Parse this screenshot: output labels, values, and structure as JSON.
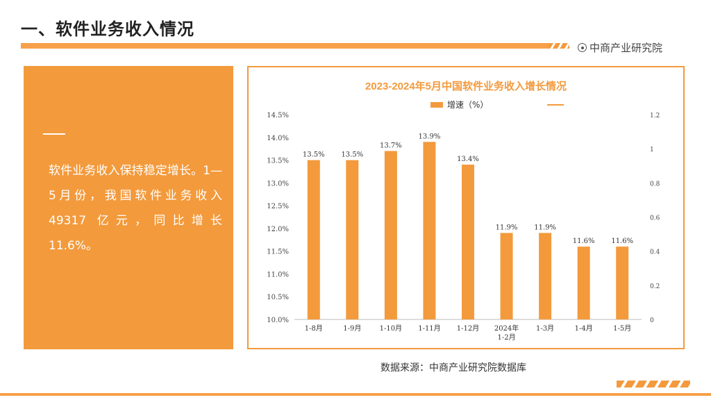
{
  "header": {
    "title": "一、软件业务收入情况",
    "brand": "中商产业研究院"
  },
  "left_panel": {
    "paragraph": "软件业务收入保持稳定增长。1—5月份，我国软件业务收入 49317 亿元，同比增长 11.6%。"
  },
  "footer": {
    "source": "数据来源：中商产业研究院数据库"
  },
  "colors": {
    "accent": "#f39a3c",
    "bar": "#f39a3c",
    "text": "#333333"
  },
  "chart_data": {
    "type": "bar",
    "title": "2023-2024年5月中国软件业务收入增长情况",
    "legend": [
      "增速（%）",
      ""
    ],
    "legend_position": "top-center",
    "categories": [
      "1-8月",
      "1-9月",
      "1-10月",
      "1-11月",
      "1-12月",
      "2024年\n1-2月",
      "1-3月",
      "1-4月",
      "1-5月"
    ],
    "series": [
      {
        "name": "增速（%）",
        "values": [
          13.5,
          13.5,
          13.7,
          13.9,
          13.4,
          11.9,
          11.9,
          11.6,
          11.6
        ]
      }
    ],
    "data_labels": [
      "13.5%",
      "13.5%",
      "13.7%",
      "13.9%",
      "13.4%",
      "11.9%",
      "11.9%",
      "11.6%",
      "11.6%"
    ],
    "ylim": [
      10.0,
      14.5
    ],
    "yticks": [
      "10.0%",
      "10.5%",
      "11.0%",
      "11.5%",
      "12.0%",
      "12.5%",
      "13.0%",
      "13.5%",
      "14.0%",
      "14.5%"
    ],
    "y2lim": [
      0,
      1.2
    ],
    "y2ticks": [
      "0",
      "0.2",
      "0.4",
      "0.6",
      "0.8",
      "1",
      "1.2"
    ],
    "grid": false
  }
}
